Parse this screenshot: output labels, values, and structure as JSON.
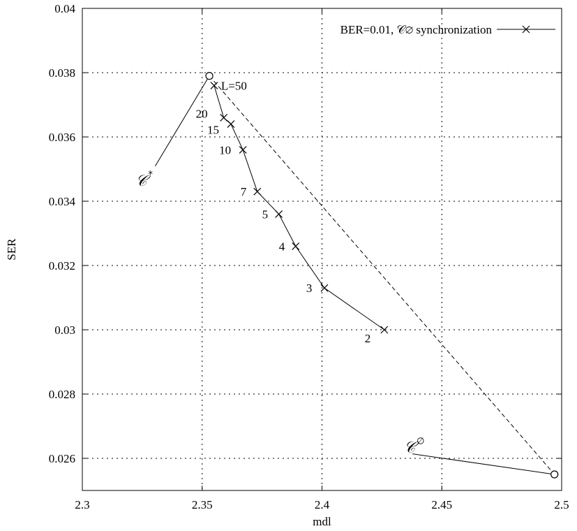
{
  "chart_data": {
    "type": "line",
    "xlabel": "mdl",
    "ylabel": "SER",
    "xlim": [
      2.3,
      2.5
    ],
    "ylim": [
      0.025,
      0.04
    ],
    "x_ticks": [
      "2.3",
      "2.35",
      "2.4",
      "2.45",
      "2.5"
    ],
    "y_ticks": [
      "0.026",
      "0.028",
      "0.03",
      "0.032",
      "0.034",
      "0.036",
      "0.038",
      "0.04"
    ],
    "grid": true,
    "legend_position": "top-right",
    "series": [
      {
        "name": "BER=0.01, 𝒞∅ synchronization",
        "marker": "x",
        "line_style": "solid",
        "points": [
          {
            "x": 2.426,
            "y": 0.03,
            "label": "2"
          },
          {
            "x": 2.401,
            "y": 0.0313,
            "label": "3"
          },
          {
            "x": 2.389,
            "y": 0.0326,
            "label": "4"
          },
          {
            "x": 2.382,
            "y": 0.0336,
            "label": "5"
          },
          {
            "x": 2.373,
            "y": 0.0343,
            "label": "7"
          },
          {
            "x": 2.367,
            "y": 0.0356,
            "label": "10"
          },
          {
            "x": 2.362,
            "y": 0.0364,
            "label": "15"
          },
          {
            "x": 2.359,
            "y": 0.0366,
            "label": "20"
          },
          {
            "x": 2.355,
            "y": 0.0376,
            "label": "L=50"
          }
        ]
      }
    ],
    "reference_points": [
      {
        "name": "C*",
        "x": 2.353,
        "y": 0.0379,
        "marker": "circle"
      },
      {
        "name": "C∅",
        "x": 2.497,
        "y": 0.0255,
        "marker": "circle"
      }
    ],
    "dashed_line": {
      "from": [
        2.353,
        0.0379
      ],
      "to": [
        2.497,
        0.0255
      ]
    },
    "annotations": [
      {
        "text": "𝒞",
        "superscript": "*",
        "x": 2.324,
        "y": 0.0347,
        "arrow_to": [
          2.353,
          0.0379
        ]
      },
      {
        "text": "𝒞",
        "superscript": "∅",
        "x": 2.436,
        "y": 0.0264,
        "arrow_to": [
          2.497,
          0.0255
        ]
      }
    ]
  }
}
